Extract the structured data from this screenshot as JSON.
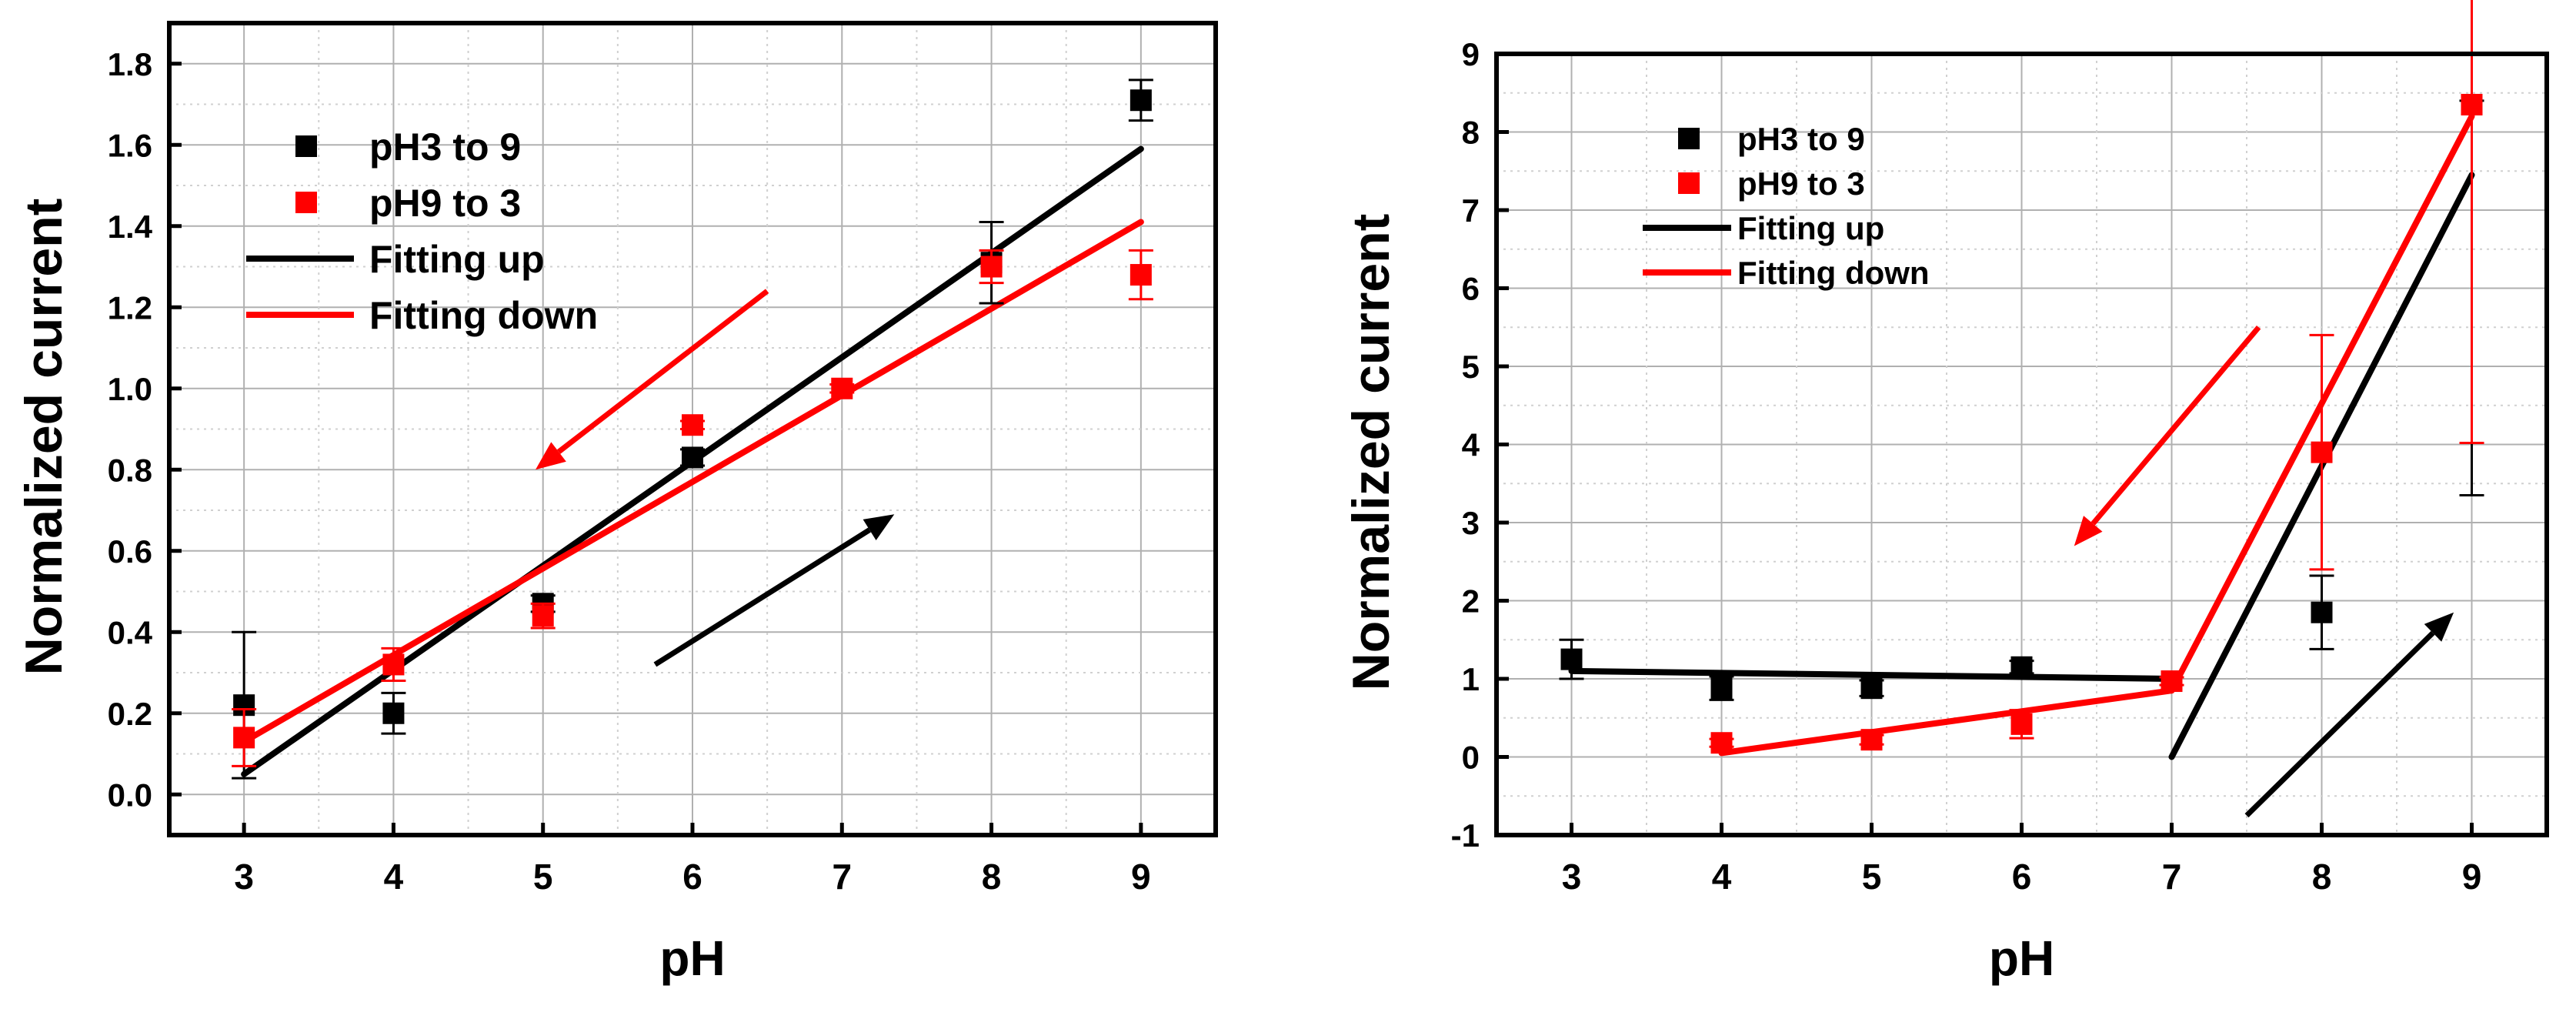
{
  "chart_data": [
    {
      "type": "scatter",
      "xlabel": "pH",
      "ylabel": "Normalized current",
      "xlim": [
        2.5,
        9.5
      ],
      "ylim": [
        -0.1,
        1.9
      ],
      "xticks": [
        3,
        4,
        5,
        6,
        7,
        8,
        9
      ],
      "yticks": [
        0.0,
        0.2,
        0.4,
        0.6,
        0.8,
        1.0,
        1.2,
        1.4,
        1.6,
        1.8
      ],
      "ytick_labels": [
        "0.0",
        "0.2",
        "0.4",
        "0.6",
        "0.8",
        "1.0",
        "1.2",
        "1.4",
        "1.6",
        "1.8"
      ],
      "grid": true,
      "legend_position": "top-left",
      "series": [
        {
          "name": "pH3 to 9",
          "kind": "points",
          "color": "#000000",
          "points": [
            {
              "x": 3,
              "y": 0.22,
              "err": 0.18
            },
            {
              "x": 4,
              "y": 0.2,
              "err": 0.05
            },
            {
              "x": 5,
              "y": 0.47,
              "err": 0.02
            },
            {
              "x": 6,
              "y": 0.83,
              "err": 0.02
            },
            {
              "x": 8,
              "y": 1.31,
              "err": 0.1
            },
            {
              "x": 9,
              "y": 1.71,
              "err": 0.05
            }
          ]
        },
        {
          "name": "pH9 to 3",
          "kind": "points",
          "color": "#ff0000",
          "points": [
            {
              "x": 3,
              "y": 0.14,
              "err": 0.07
            },
            {
              "x": 4,
              "y": 0.32,
              "err": 0.04
            },
            {
              "x": 5,
              "y": 0.44,
              "err": 0.03
            },
            {
              "x": 6,
              "y": 0.91,
              "err": 0.01
            },
            {
              "x": 7,
              "y": 1.0,
              "err": 0.01
            },
            {
              "x": 8,
              "y": 1.3,
              "err": 0.04
            },
            {
              "x": 9,
              "y": 1.28,
              "err": 0.06
            }
          ]
        },
        {
          "name": "Fitting up",
          "kind": "line",
          "color": "#000000",
          "segments": [
            [
              {
                "x": 3,
                "y": 0.05
              },
              {
                "x": 9,
                "y": 1.59
              }
            ]
          ]
        },
        {
          "name": "Fitting down",
          "kind": "line",
          "color": "#ff0000",
          "segments": [
            [
              {
                "x": 3,
                "y": 0.13
              },
              {
                "x": 9,
                "y": 1.41
              }
            ]
          ]
        }
      ],
      "arrows": [
        {
          "color": "#ff0000",
          "from": {
            "x": 6.5,
            "y": 1.24
          },
          "to": {
            "x": 4.95,
            "y": 0.8
          }
        },
        {
          "color": "#000000",
          "from": {
            "x": 5.75,
            "y": 0.32
          },
          "to": {
            "x": 7.35,
            "y": 0.69
          }
        }
      ]
    },
    {
      "type": "scatter",
      "xlabel": "pH",
      "ylabel": "Normalized current",
      "xlim": [
        2.5,
        9.5
      ],
      "ylim": [
        -1,
        9
      ],
      "xticks": [
        3,
        4,
        5,
        6,
        7,
        8,
        9
      ],
      "yticks": [
        -1,
        0,
        1,
        2,
        3,
        4,
        5,
        6,
        7,
        8,
        9
      ],
      "ytick_labels": [
        "-1",
        "0",
        "1",
        "2",
        "3",
        "4",
        "5",
        "6",
        "7",
        "8",
        "9"
      ],
      "grid": true,
      "legend_position": "top-left",
      "series": [
        {
          "name": "pH3 to 9",
          "kind": "points",
          "color": "#000000",
          "points": [
            {
              "x": 3,
              "y": 1.25,
              "err": 0.25
            },
            {
              "x": 4,
              "y": 0.88,
              "err": 0.15
            },
            {
              "x": 5,
              "y": 0.88,
              "err": 0.1
            },
            {
              "x": 6,
              "y": 1.15,
              "err": 0.08
            },
            {
              "x": 8,
              "y": 1.85,
              "err": 0.47
            },
            {
              "x": 9,
              "y": 8.4,
              "err": 0
            }
          ],
          "extra_errorbars": [
            {
              "x": 9,
              "low": 3.35,
              "high": 8.4
            }
          ]
        },
        {
          "name": "pH9 to 3",
          "kind": "points",
          "color": "#ff0000",
          "points": [
            {
              "x": 4,
              "y": 0.18,
              "err": 0.05
            },
            {
              "x": 5,
              "y": 0.22,
              "err": 0.06
            },
            {
              "x": 6,
              "y": 0.42,
              "err": 0.18
            },
            {
              "x": 7,
              "y": 0.97,
              "err": 0.05
            },
            {
              "x": 8,
              "y": 3.9,
              "err": 1.5
            },
            {
              "x": 9,
              "y": 8.35,
              "err": 4.33
            }
          ]
        },
        {
          "name": "Fitting up",
          "kind": "line",
          "color": "#000000",
          "segments": [
            [
              {
                "x": 3,
                "y": 1.1
              },
              {
                "x": 7,
                "y": 1.0
              }
            ],
            [
              {
                "x": 7,
                "y": 0.0
              },
              {
                "x": 9,
                "y": 7.45
              }
            ]
          ]
        },
        {
          "name": "Fitting down",
          "kind": "line",
          "color": "#ff0000",
          "segments": [
            [
              {
                "x": 4,
                "y": 0.05
              },
              {
                "x": 7,
                "y": 0.85
              }
            ],
            [
              {
                "x": 7,
                "y": 0.85
              },
              {
                "x": 9,
                "y": 8.2
              }
            ]
          ]
        }
      ],
      "arrows": [
        {
          "color": "#ff0000",
          "from": {
            "x": 7.58,
            "y": 5.5
          },
          "to": {
            "x": 6.35,
            "y": 2.7
          }
        },
        {
          "color": "#000000",
          "from": {
            "x": 7.5,
            "y": -0.75
          },
          "to": {
            "x": 8.88,
            "y": 1.85
          }
        }
      ]
    }
  ]
}
